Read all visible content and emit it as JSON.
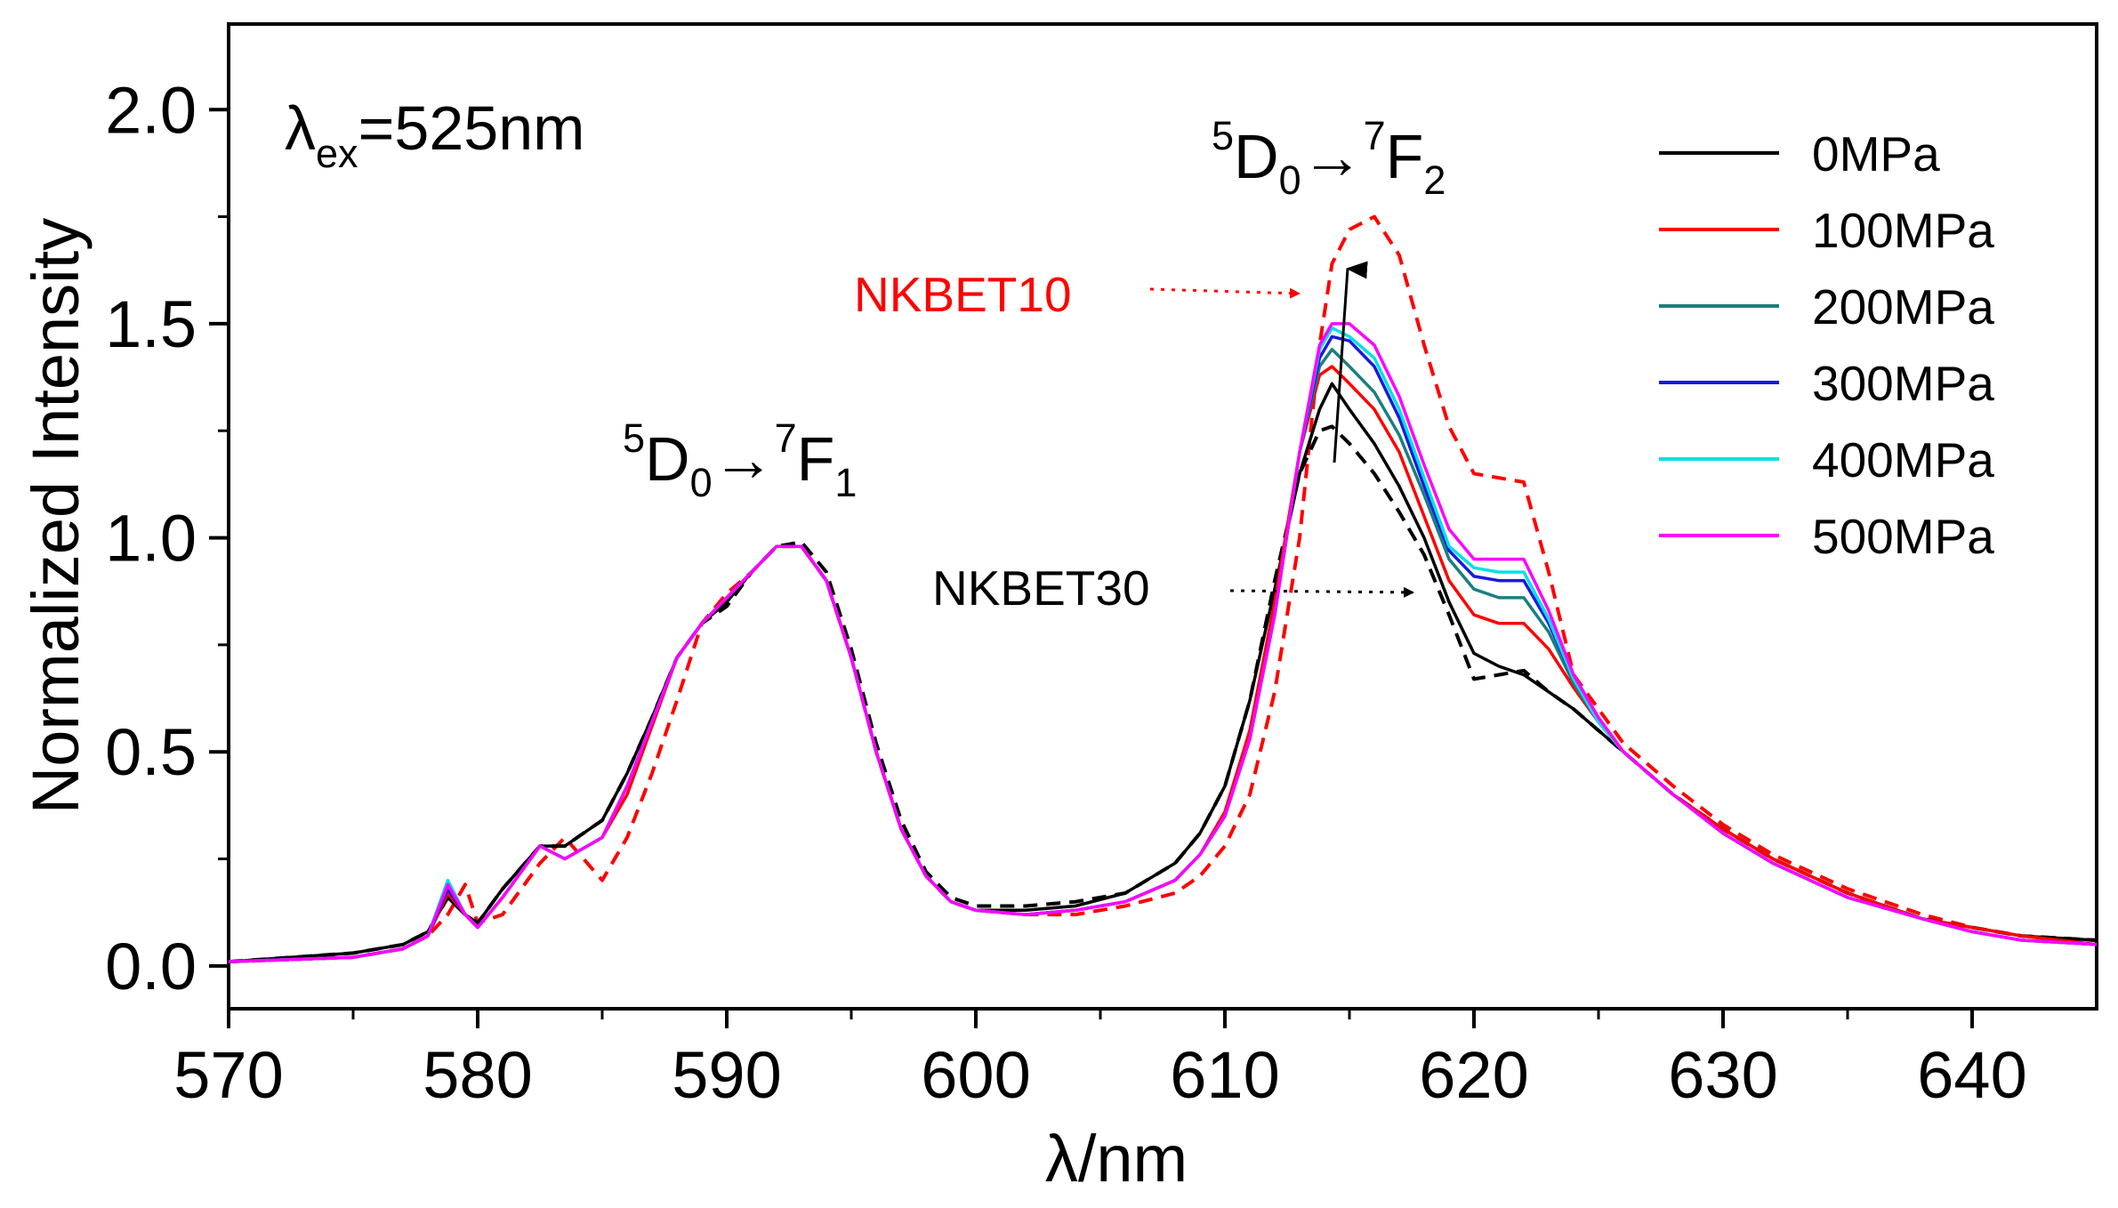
{
  "chart_data": {
    "type": "line",
    "xlabel": "λ/nm",
    "ylabel": "Normalized Intensity",
    "xlim": [
      570,
      645
    ],
    "ylim": [
      -0.1,
      2.2
    ],
    "xticks": [
      570,
      580,
      590,
      600,
      610,
      620,
      630,
      640
    ],
    "yticks": [
      0.0,
      0.5,
      1.0,
      1.5,
      2.0
    ],
    "xtick_labels": [
      "570",
      "580",
      "590",
      "600",
      "610",
      "620",
      "630",
      "640"
    ],
    "ytick_labels": [
      "0.0",
      "0.5",
      "1.0",
      "1.5",
      "2.0"
    ],
    "excitation": {
      "symbol": "λ",
      "subscript": "ex",
      "value": "=525nm"
    },
    "transitions": [
      {
        "name": "5D0-7F1",
        "sup1": "5",
        "main1": "D",
        "sub1": "0",
        "arrow": "→",
        "sup2": "7",
        "main2": "F",
        "sub2": "1"
      },
      {
        "name": "5D0-7F2",
        "sup1": "5",
        "main1": "D",
        "sub1": "0",
        "arrow": "→",
        "sup2": "7",
        "main2": "F",
        "sub2": "2"
      }
    ],
    "sample_labels": [
      {
        "text": "NKBET10",
        "color": "#ff0000"
      },
      {
        "text": "NKBET30",
        "color": "#000000"
      }
    ],
    "legend_position": "top-right",
    "series": [
      {
        "name": "0MPa",
        "color": "#000000",
        "style": "solid",
        "in_legend": true,
        "x": [
          570,
          575,
          577,
          578,
          578.8,
          579.5,
          580,
          581,
          582.5,
          583.5,
          585,
          586,
          587,
          588,
          589,
          590,
          591,
          592,
          593,
          594,
          595,
          596,
          597,
          598,
          599,
          600,
          602,
          604,
          606,
          608,
          609,
          610,
          611,
          612,
          613,
          613.8,
          614.3,
          615,
          616,
          617,
          618,
          619,
          620,
          621,
          622,
          623,
          624,
          625,
          626,
          628,
          630,
          632,
          635,
          638,
          640,
          642,
          645
        ],
        "y": [
          0.01,
          0.03,
          0.05,
          0.08,
          0.16,
          0.12,
          0.1,
          0.18,
          0.28,
          0.28,
          0.34,
          0.45,
          0.58,
          0.72,
          0.8,
          0.85,
          0.92,
          0.98,
          0.98,
          0.9,
          0.72,
          0.5,
          0.32,
          0.21,
          0.15,
          0.13,
          0.13,
          0.14,
          0.17,
          0.24,
          0.31,
          0.42,
          0.62,
          0.88,
          1.15,
          1.3,
          1.36,
          1.3,
          1.22,
          1.12,
          1.0,
          0.85,
          0.73,
          0.7,
          0.68,
          0.64,
          0.6,
          0.55,
          0.5,
          0.4,
          0.32,
          0.25,
          0.17,
          0.11,
          0.09,
          0.07,
          0.06
        ]
      },
      {
        "name": "100MPa",
        "color": "#ff0000",
        "style": "solid",
        "in_legend": true,
        "x": [
          570,
          575,
          577,
          578,
          578.8,
          579.5,
          580,
          581,
          582.5,
          583.5,
          585,
          586,
          587,
          588,
          589,
          590,
          591,
          592,
          593,
          594,
          595,
          596,
          597,
          598,
          599,
          600,
          602,
          604,
          606,
          608,
          609,
          610,
          611,
          612,
          613,
          613.8,
          614.3,
          615,
          616,
          617,
          618,
          619,
          620,
          621,
          622,
          623,
          624,
          625,
          626,
          628,
          630,
          632,
          635,
          638,
          640,
          642,
          645
        ],
        "y": [
          0.01,
          0.02,
          0.04,
          0.07,
          0.17,
          0.12,
          0.09,
          0.16,
          0.28,
          0.25,
          0.3,
          0.4,
          0.56,
          0.72,
          0.8,
          0.86,
          0.92,
          0.98,
          0.98,
          0.9,
          0.72,
          0.5,
          0.32,
          0.21,
          0.15,
          0.13,
          0.12,
          0.13,
          0.15,
          0.2,
          0.26,
          0.36,
          0.55,
          0.85,
          1.2,
          1.38,
          1.4,
          1.36,
          1.3,
          1.2,
          1.05,
          0.9,
          0.82,
          0.8,
          0.8,
          0.74,
          0.65,
          0.57,
          0.5,
          0.4,
          0.32,
          0.25,
          0.17,
          0.11,
          0.09,
          0.07,
          0.05
        ]
      },
      {
        "name": "200MPa",
        "color": "#1a7f7f",
        "style": "solid",
        "in_legend": true,
        "x": [
          570,
          575,
          577,
          578,
          578.8,
          579.5,
          580,
          581,
          582.5,
          583.5,
          585,
          586,
          587,
          588,
          589,
          590,
          591,
          592,
          593,
          594,
          595,
          596,
          597,
          598,
          599,
          600,
          602,
          604,
          606,
          608,
          609,
          610,
          611,
          612,
          613,
          613.8,
          614.3,
          615,
          616,
          617,
          618,
          619,
          620,
          621,
          622,
          623,
          624,
          625,
          626,
          628,
          630,
          632,
          635,
          638,
          640,
          642,
          645
        ],
        "y": [
          0.01,
          0.02,
          0.04,
          0.07,
          0.18,
          0.12,
          0.09,
          0.16,
          0.28,
          0.25,
          0.3,
          0.42,
          0.57,
          0.72,
          0.8,
          0.86,
          0.92,
          0.98,
          0.98,
          0.9,
          0.72,
          0.5,
          0.32,
          0.21,
          0.15,
          0.13,
          0.12,
          0.13,
          0.15,
          0.2,
          0.26,
          0.35,
          0.53,
          0.82,
          1.2,
          1.4,
          1.44,
          1.4,
          1.34,
          1.24,
          1.1,
          0.95,
          0.88,
          0.86,
          0.86,
          0.78,
          0.66,
          0.57,
          0.5,
          0.4,
          0.31,
          0.24,
          0.16,
          0.11,
          0.08,
          0.06,
          0.05
        ]
      },
      {
        "name": "300MPa",
        "color": "#1a1adb",
        "style": "solid",
        "in_legend": true,
        "x": [
          570,
          575,
          577,
          578,
          578.8,
          579.5,
          580,
          581,
          582.5,
          583.5,
          585,
          586,
          587,
          588,
          589,
          590,
          591,
          592,
          593,
          594,
          595,
          596,
          597,
          598,
          599,
          600,
          602,
          604,
          606,
          608,
          609,
          610,
          611,
          612,
          613,
          613.8,
          614.3,
          615,
          616,
          617,
          618,
          619,
          620,
          621,
          622,
          623,
          624,
          625,
          626,
          628,
          630,
          632,
          635,
          638,
          640,
          642,
          645
        ],
        "y": [
          0.01,
          0.02,
          0.04,
          0.07,
          0.18,
          0.12,
          0.09,
          0.16,
          0.28,
          0.25,
          0.3,
          0.42,
          0.57,
          0.72,
          0.8,
          0.86,
          0.92,
          0.98,
          0.98,
          0.9,
          0.72,
          0.5,
          0.32,
          0.21,
          0.15,
          0.13,
          0.12,
          0.13,
          0.15,
          0.2,
          0.26,
          0.35,
          0.53,
          0.82,
          1.2,
          1.42,
          1.47,
          1.46,
          1.4,
          1.28,
          1.12,
          0.97,
          0.91,
          0.9,
          0.9,
          0.8,
          0.67,
          0.57,
          0.5,
          0.4,
          0.31,
          0.24,
          0.16,
          0.11,
          0.08,
          0.06,
          0.05
        ]
      },
      {
        "name": "400MPa",
        "color": "#00e0e8",
        "style": "solid",
        "in_legend": true,
        "x": [
          570,
          575,
          577,
          578,
          578.8,
          579.5,
          580,
          581,
          582.5,
          583.5,
          585,
          586,
          587,
          588,
          589,
          590,
          591,
          592,
          593,
          594,
          595,
          596,
          597,
          598,
          599,
          600,
          602,
          604,
          606,
          608,
          609,
          610,
          611,
          612,
          613,
          613.8,
          614.3,
          615,
          616,
          617,
          618,
          619,
          620,
          621,
          622,
          623,
          624,
          625,
          626,
          628,
          630,
          632,
          635,
          638,
          640,
          642,
          645
        ],
        "y": [
          0.01,
          0.02,
          0.04,
          0.07,
          0.2,
          0.12,
          0.09,
          0.16,
          0.28,
          0.25,
          0.3,
          0.42,
          0.57,
          0.72,
          0.8,
          0.86,
          0.92,
          0.98,
          0.98,
          0.9,
          0.72,
          0.5,
          0.32,
          0.21,
          0.15,
          0.13,
          0.12,
          0.13,
          0.15,
          0.2,
          0.26,
          0.35,
          0.53,
          0.82,
          1.2,
          1.44,
          1.49,
          1.47,
          1.42,
          1.3,
          1.14,
          0.98,
          0.93,
          0.92,
          0.92,
          0.81,
          0.67,
          0.57,
          0.5,
          0.4,
          0.31,
          0.24,
          0.16,
          0.11,
          0.08,
          0.06,
          0.05
        ]
      },
      {
        "name": "500MPa",
        "color": "#ff00ff",
        "style": "solid",
        "in_legend": true,
        "x": [
          570,
          575,
          577,
          578,
          578.8,
          579.5,
          580,
          581,
          582.5,
          583.5,
          585,
          586,
          587,
          588,
          589,
          590,
          591,
          592,
          593,
          594,
          595,
          596,
          597,
          598,
          599,
          600,
          602,
          604,
          606,
          608,
          609,
          610,
          611,
          612,
          613,
          613.8,
          614.3,
          615,
          616,
          617,
          618,
          619,
          620,
          621,
          622,
          623,
          624,
          625,
          626,
          628,
          630,
          632,
          635,
          638,
          640,
          642,
          645
        ],
        "y": [
          0.01,
          0.02,
          0.04,
          0.07,
          0.19,
          0.12,
          0.09,
          0.16,
          0.28,
          0.25,
          0.3,
          0.42,
          0.57,
          0.72,
          0.8,
          0.86,
          0.92,
          0.98,
          0.98,
          0.9,
          0.72,
          0.5,
          0.32,
          0.21,
          0.15,
          0.13,
          0.12,
          0.13,
          0.15,
          0.2,
          0.26,
          0.35,
          0.53,
          0.82,
          1.2,
          1.45,
          1.5,
          1.5,
          1.45,
          1.33,
          1.17,
          1.02,
          0.95,
          0.95,
          0.95,
          0.83,
          0.68,
          0.58,
          0.5,
          0.4,
          0.31,
          0.24,
          0.16,
          0.11,
          0.08,
          0.06,
          0.05
        ]
      },
      {
        "name": "NKBET10",
        "color": "#ff0000",
        "style": "dashed",
        "in_legend": false,
        "x": [
          570,
          575,
          577,
          578,
          578.8,
          579.5,
          580,
          581,
          582.5,
          583.5,
          585,
          586,
          587,
          588,
          589,
          590,
          591,
          592,
          593,
          594,
          595,
          596,
          597,
          598,
          599,
          600,
          602,
          604,
          606,
          608,
          609,
          610,
          611,
          612,
          613,
          613.8,
          614.3,
          615,
          616,
          617,
          618,
          619,
          620,
          621,
          622,
          623,
          624,
          625,
          626,
          628,
          630,
          632,
          635,
          638,
          640,
          642,
          645
        ],
        "y": [
          0.01,
          0.02,
          0.04,
          0.07,
          0.12,
          0.19,
          0.1,
          0.12,
          0.24,
          0.3,
          0.2,
          0.3,
          0.45,
          0.62,
          0.8,
          0.87,
          0.92,
          0.98,
          0.98,
          0.9,
          0.72,
          0.5,
          0.32,
          0.21,
          0.15,
          0.13,
          0.12,
          0.12,
          0.14,
          0.17,
          0.21,
          0.28,
          0.4,
          0.64,
          1.0,
          1.45,
          1.64,
          1.72,
          1.75,
          1.66,
          1.45,
          1.26,
          1.15,
          1.14,
          1.13,
          0.92,
          0.68,
          0.6,
          0.52,
          0.42,
          0.33,
          0.26,
          0.18,
          0.12,
          0.09,
          0.07,
          0.06
        ]
      },
      {
        "name": "NKBET30",
        "color": "#000000",
        "style": "dashed",
        "in_legend": false,
        "x": [
          570,
          575,
          577,
          578,
          578.8,
          579.5,
          580,
          581,
          582.5,
          583.5,
          585,
          586,
          587,
          588,
          589,
          590,
          591,
          592,
          593,
          594,
          595,
          596,
          597,
          598,
          599,
          600,
          602,
          604,
          606,
          608,
          609,
          610,
          611,
          612,
          613,
          613.8,
          614.3,
          615,
          616,
          617,
          618,
          619,
          620,
          621,
          622,
          623,
          624,
          625,
          626,
          628,
          630,
          632,
          635,
          638,
          640,
          642,
          645
        ],
        "y": [
          0.01,
          0.03,
          0.05,
          0.08,
          0.16,
          0.12,
          0.1,
          0.18,
          0.28,
          0.28,
          0.34,
          0.45,
          0.58,
          0.72,
          0.8,
          0.84,
          0.92,
          0.98,
          0.99,
          0.92,
          0.74,
          0.52,
          0.34,
          0.22,
          0.16,
          0.14,
          0.14,
          0.15,
          0.17,
          0.24,
          0.31,
          0.42,
          0.62,
          0.9,
          1.15,
          1.25,
          1.26,
          1.22,
          1.15,
          1.06,
          0.96,
          0.82,
          0.67,
          0.68,
          0.69,
          0.64,
          0.6,
          0.55,
          0.5,
          0.4,
          0.32,
          0.25,
          0.17,
          0.11,
          0.09,
          0.07,
          0.06
        ]
      }
    ],
    "legend_entries": [
      "0MPa",
      "100MPa",
      "200MPa",
      "300MPa",
      "400MPa",
      "500MPa"
    ]
  }
}
